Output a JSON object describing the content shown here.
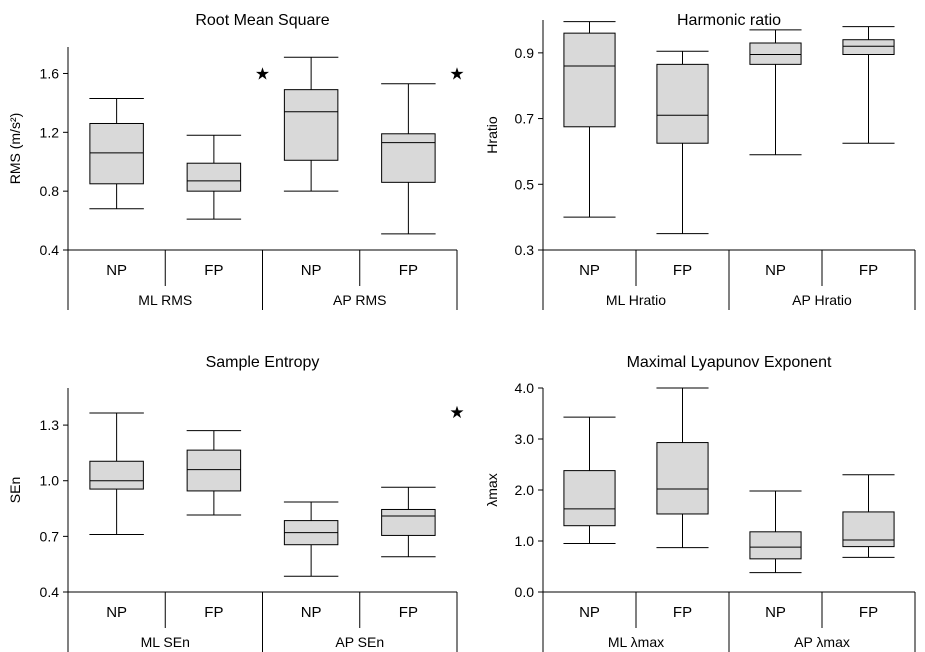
{
  "colors": {
    "box_fill": "#d9d9d9",
    "line": "#000000"
  },
  "chart_data": [
    {
      "type": "box",
      "title": "Root Mean Square",
      "ylabel": "RMS (m/s²)",
      "yticks": [
        "0.4",
        "0.8",
        "1.2",
        "1.6"
      ],
      "ylim": [
        0.4,
        1.78
      ],
      "categories": [
        "NP",
        "FP",
        "NP",
        "FP"
      ],
      "groups": [
        "ML RMS",
        "AP RMS"
      ],
      "boxes": [
        {
          "min": 0.68,
          "q1": 0.85,
          "median": 1.06,
          "q3": 1.26,
          "max": 1.43
        },
        {
          "min": 0.61,
          "q1": 0.8,
          "median": 0.87,
          "q3": 0.99,
          "max": 1.18
        },
        {
          "min": 0.8,
          "q1": 1.01,
          "median": 1.34,
          "q3": 1.49,
          "max": 1.71
        },
        {
          "min": 0.51,
          "q1": 0.86,
          "median": 1.13,
          "q3": 1.19,
          "max": 1.53
        }
      ],
      "star": "★",
      "stars": [
        {
          "x": 1.5,
          "y": 1.6
        },
        {
          "x": 3.5,
          "y": 1.6
        }
      ]
    },
    {
      "type": "box",
      "title": "Harmonic ratio",
      "ylabel": "Hratio",
      "yticks": [
        "0.3",
        "0.5",
        "0.7",
        "0.9"
      ],
      "ylim": [
        0.3,
        1.0
      ],
      "categories": [
        "NP",
        "FP",
        "NP",
        "FP"
      ],
      "groups": [
        "ML Hratio",
        "AP Hratio"
      ],
      "boxes": [
        {
          "min": 0.4,
          "q1": 0.675,
          "median": 0.86,
          "q3": 0.96,
          "max": 0.995
        },
        {
          "min": 0.35,
          "q1": 0.625,
          "median": 0.71,
          "q3": 0.865,
          "max": 0.905
        },
        {
          "min": 0.59,
          "q1": 0.865,
          "median": 0.895,
          "q3": 0.93,
          "max": 0.97
        },
        {
          "min": 0.625,
          "q1": 0.895,
          "median": 0.92,
          "q3": 0.94,
          "max": 0.98
        }
      ],
      "star": "★",
      "stars": []
    },
    {
      "type": "box",
      "title": "Sample Entropy",
      "ylabel": "SEn",
      "yticks": [
        "0.4",
        "0.7",
        "1.0",
        "1.3"
      ],
      "ylim": [
        0.4,
        1.5
      ],
      "categories": [
        "NP",
        "FP",
        "NP",
        "FP"
      ],
      "groups": [
        "ML SEn",
        "AP SEn"
      ],
      "boxes": [
        {
          "min": 0.71,
          "q1": 0.955,
          "median": 1.0,
          "q3": 1.105,
          "max": 1.365
        },
        {
          "min": 0.815,
          "q1": 0.945,
          "median": 1.06,
          "q3": 1.165,
          "max": 1.27
        },
        {
          "min": 0.485,
          "q1": 0.655,
          "median": 0.72,
          "q3": 0.785,
          "max": 0.885
        },
        {
          "min": 0.59,
          "q1": 0.705,
          "median": 0.81,
          "q3": 0.845,
          "max": 0.965
        }
      ],
      "star": "★",
      "stars": [
        {
          "x": 3.5,
          "y": 1.37
        }
      ]
    },
    {
      "type": "box",
      "title": "Maximal Lyapunov Exponent",
      "ylabel": "λmax",
      "yticks": [
        "0.0",
        "1.0",
        "2.0",
        "3.0",
        "4.0"
      ],
      "ylim": [
        0.0,
        4.0
      ],
      "categories": [
        "NP",
        "FP",
        "NP",
        "FP"
      ],
      "groups": [
        "ML λmax",
        "AP λmax"
      ],
      "boxes": [
        {
          "min": 0.95,
          "q1": 1.3,
          "median": 1.63,
          "q3": 2.38,
          "max": 3.43
        },
        {
          "min": 0.87,
          "q1": 1.53,
          "median": 2.02,
          "q3": 2.93,
          "max": 4.0
        },
        {
          "min": 0.38,
          "q1": 0.65,
          "median": 0.88,
          "q3": 1.18,
          "max": 1.98
        },
        {
          "min": 0.68,
          "q1": 0.89,
          "median": 1.02,
          "q3": 1.57,
          "max": 2.3
        }
      ],
      "star": "★",
      "stars": []
    }
  ]
}
